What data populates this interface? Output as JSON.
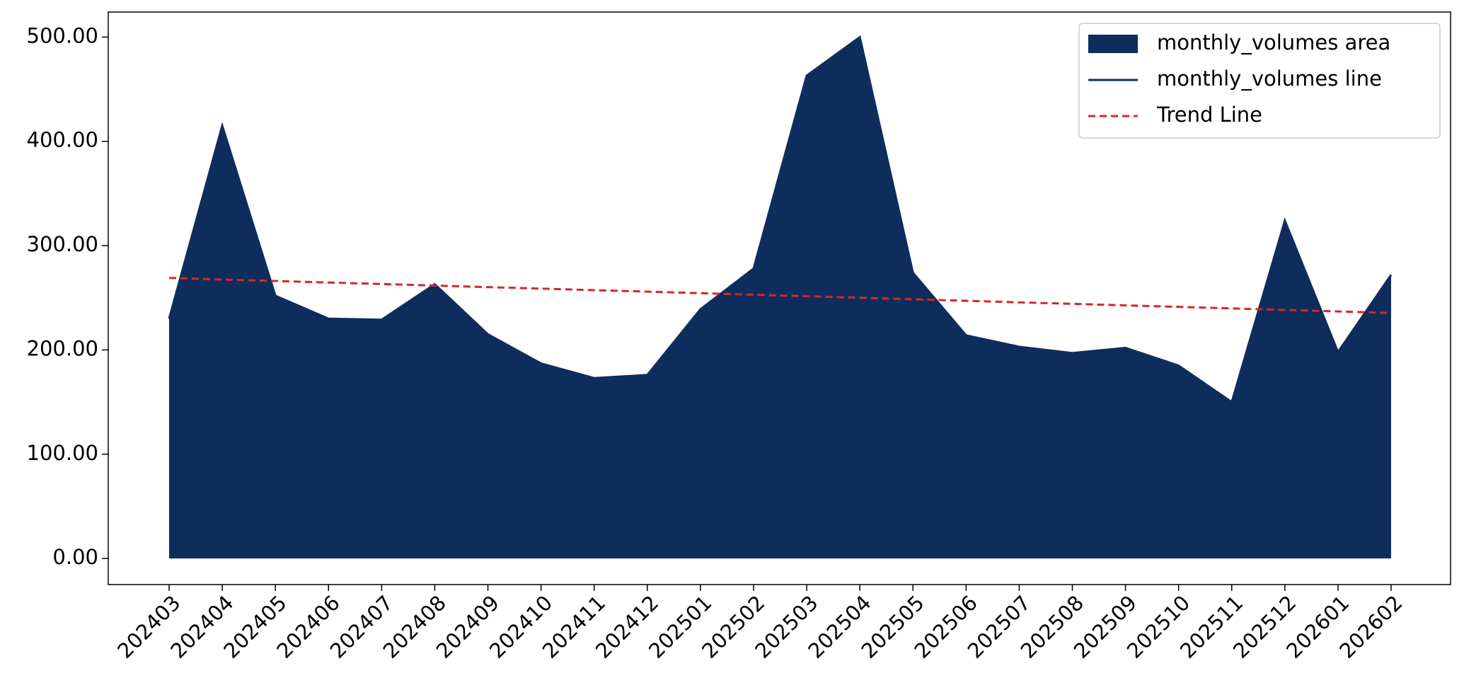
{
  "chart_data": {
    "type": "area",
    "categories": [
      "202403",
      "202404",
      "202405",
      "202406",
      "202407",
      "202408",
      "202409",
      "202410",
      "202411",
      "202412",
      "202501",
      "202502",
      "202503",
      "202504",
      "202505",
      "202506",
      "202507",
      "202508",
      "202509",
      "202510",
      "202511",
      "202512",
      "202601",
      "202602"
    ],
    "series": [
      {
        "name": "monthly_volumes area",
        "type": "area",
        "color": "#0f2d5c",
        "values": [
          230,
          415,
          252,
          230,
          229,
          263,
          215,
          187,
          173,
          176,
          239,
          278,
          463,
          500,
          274,
          214,
          203,
          197,
          202,
          185,
          150,
          324,
          198,
          272
        ]
      },
      {
        "name": "monthly_volumes line",
        "type": "line",
        "color": "#0f2d5c",
        "values": [
          230,
          415,
          252,
          230,
          229,
          263,
          215,
          187,
          173,
          176,
          239,
          278,
          463,
          500,
          274,
          214,
          203,
          197,
          202,
          185,
          150,
          324,
          198,
          272
        ]
      },
      {
        "name": "Trend Line",
        "type": "dashed",
        "color": "#d62728",
        "values": [
          269.0,
          267.5,
          266.1,
          264.6,
          263.2,
          261.7,
          260.2,
          258.8,
          257.3,
          255.9,
          254.4,
          252.9,
          251.5,
          250.0,
          248.6,
          247.1,
          245.6,
          244.2,
          242.7,
          241.3,
          239.8,
          238.3,
          236.9,
          235.4
        ]
      }
    ],
    "ylim": [
      -25,
      524
    ],
    "yticks": [
      {
        "value": 0,
        "label": "0.00"
      },
      {
        "value": 100,
        "label": "100.00"
      },
      {
        "value": 200,
        "label": "200.00"
      },
      {
        "value": 300,
        "label": "300.00"
      },
      {
        "value": 400,
        "label": "400.00"
      },
      {
        "value": 500,
        "label": "500.00"
      }
    ],
    "grid": false,
    "legend": "upper right"
  }
}
